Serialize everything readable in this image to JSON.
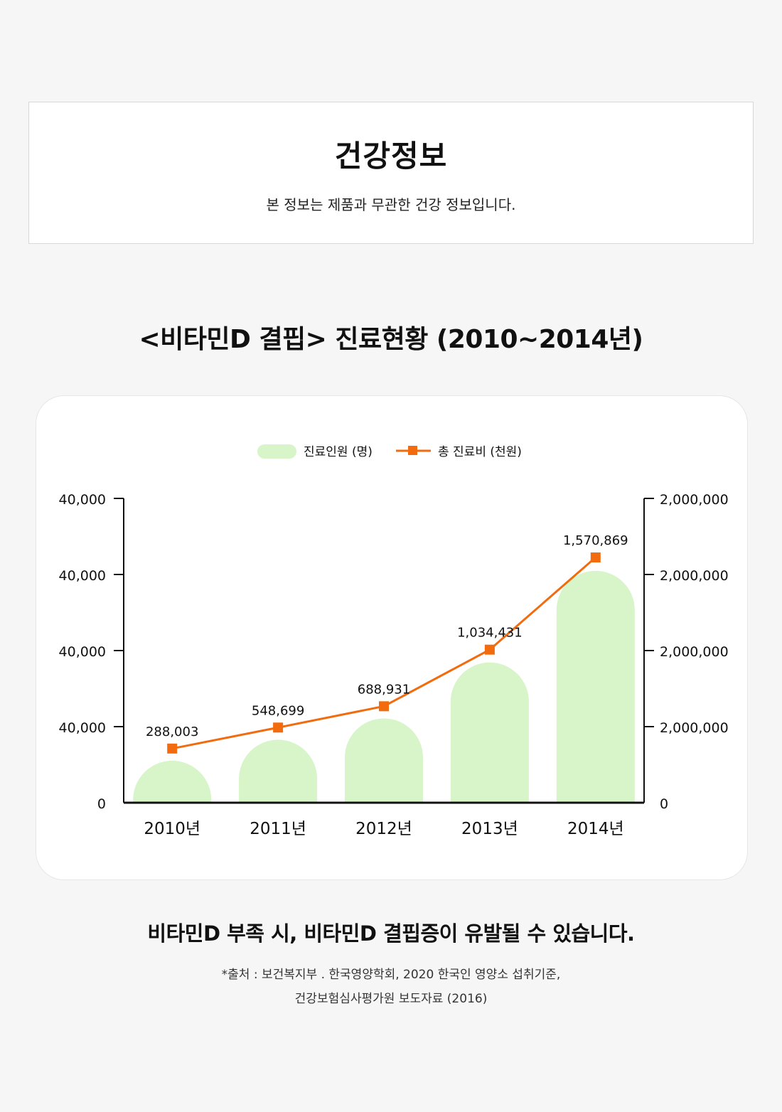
{
  "info": {
    "title": "건강정보",
    "subtitle": "본 정보는 제품과 무관한 건강 정보입니다."
  },
  "chart_heading": "<비타민D 결핍> 진료현황 (2010~2014년)",
  "colors": {
    "bar": "#d7f5c8",
    "line": "#f26b0f",
    "axis": "#111111",
    "page_bg": "#f6f6f6"
  },
  "chart_data": {
    "type": "bar",
    "categories": [
      "2010년",
      "2011년",
      "2012년",
      "2013년",
      "2014년"
    ],
    "series": [
      {
        "name": "진료인원 (명)",
        "type": "bar",
        "axis": "left",
        "relative_heights": [
          0.138,
          0.207,
          0.277,
          0.461,
          0.762
        ]
      },
      {
        "name": "총 진료비 (천원)",
        "type": "line",
        "axis": "right",
        "marker": "square",
        "values": [
          288003,
          548699,
          688931,
          1034431,
          1570869
        ],
        "labels": [
          "288,003",
          "548,699",
          "688,931",
          "1,034,431",
          "1,570,869"
        ],
        "relative_heights": [
          0.178,
          0.247,
          0.317,
          0.503,
          0.806
        ]
      }
    ],
    "left_ticks": [
      "0",
      "40,000",
      "40,000",
      "40,000",
      "40,000"
    ],
    "right_ticks": [
      "0",
      "2,000,000",
      "2,000,000",
      "2,000,000",
      "2,000,000"
    ],
    "legend_position": "top-center",
    "grid": false
  },
  "conclusion": "비타민D 부족 시, 비타민D 결핍증이 유발될 수 있습니다.",
  "source": {
    "line1": "*출처 : 보건복지부 . 한국영양학회, 2020 한국인 영양소 섭취기준,",
    "line2": "건강보험심사평가원 보도자료 (2016)"
  }
}
